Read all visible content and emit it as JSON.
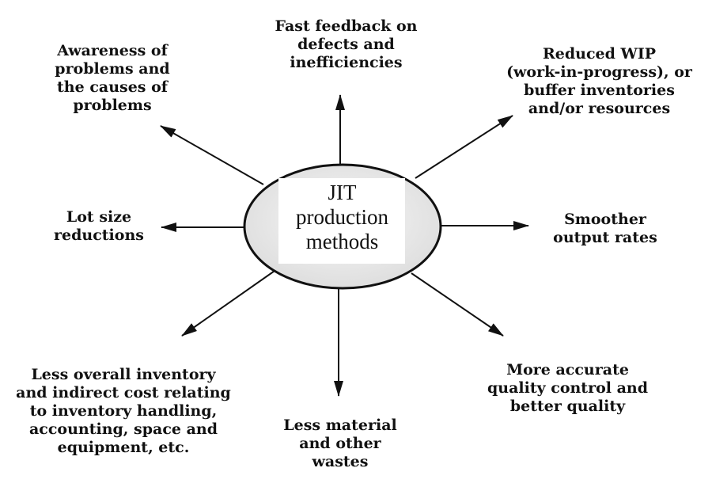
{
  "diagram": {
    "center": {
      "label": "JIT\nproduction\nmethods"
    },
    "outcomes": {
      "fast_feedback": "Fast feedback on\ndefects and\ninefficiencies",
      "reduced_wip": "Reduced WIP\n(work-in-progress), or\nbuffer inventories\nand/or resources",
      "smoother_output": "Smoother\noutput rates",
      "quality_control": "More accurate\nquality control and\nbetter quality",
      "less_waste": "Less material\nand other\nwastes",
      "less_inventory": "Less  overall inventory\nand indirect cost relating\nto inventory handling,\naccounting, space and\nequipment, etc.",
      "lot_size": "Lot size\nreductions",
      "awareness": "Awareness of\nproblems and\nthe causes of\nproblems"
    }
  }
}
